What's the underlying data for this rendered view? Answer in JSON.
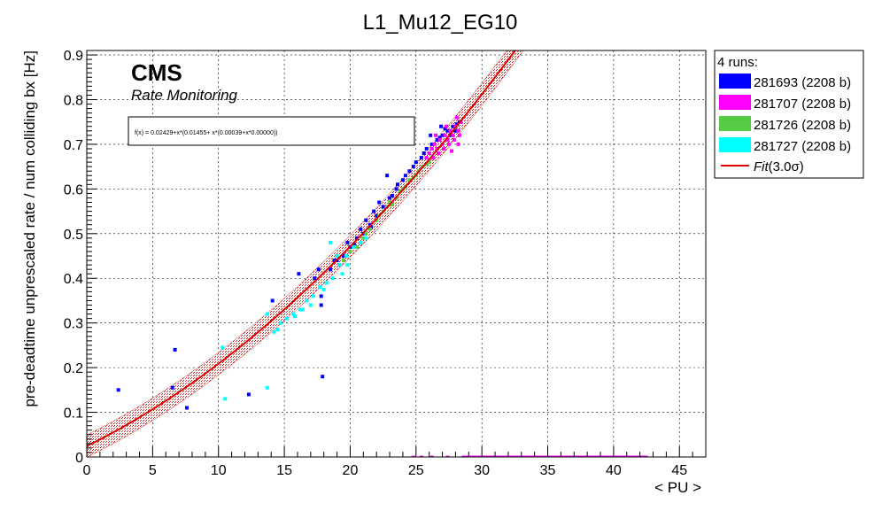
{
  "chart_data": {
    "type": "scatter",
    "title": "L1_Mu12_EG10",
    "xlabel": "< PU >",
    "ylabel": "pre-deadtime unprescaled rate / num colliding bx [Hz]",
    "xlim": [
      0,
      47
    ],
    "ylim": [
      0,
      0.91
    ],
    "x_ticks": [
      0,
      5,
      10,
      15,
      20,
      25,
      30,
      35,
      40,
      45
    ],
    "y_ticks": [
      0,
      0.1,
      0.2,
      0.3,
      0.4,
      0.5,
      0.6,
      0.7,
      0.8,
      0.9
    ],
    "x_tick_labels": [
      "0",
      "5",
      "10",
      "15",
      "20",
      "25",
      "30",
      "35",
      "40",
      "45"
    ],
    "y_tick_labels": [
      "0",
      "0.1",
      "0.2",
      "0.3",
      "0.4",
      "0.5",
      "0.6",
      "0.7",
      "0.8",
      "0.9"
    ],
    "grid": true,
    "cms_label": "CMS",
    "cms_sublabel": "Rate Monitoring",
    "fit_formula": "f(x) = 0.02429+x*(0.01455+ x*(0.00039+x*0.00000))",
    "fit": {
      "name": "Fit(3.0σ)",
      "name_prefix": "Fit",
      "name_suffix": "(3.0σ)",
      "color": "#dd0000",
      "band_color": "#cc2222",
      "coefficients": [
        0.02429,
        0.01455,
        0.00039,
        0.0
      ],
      "sigma_band": 0.025
    },
    "legend": {
      "title": "4 runs:",
      "position": "top-right outside"
    },
    "series": [
      {
        "name": "281693 (2208 b)",
        "color": "#0000ff",
        "points": [
          [
            2.4,
            0.15
          ],
          [
            6.5,
            0.155
          ],
          [
            6.7,
            0.24
          ],
          [
            7.6,
            0.11
          ],
          [
            12.3,
            0.14
          ],
          [
            14.1,
            0.35
          ],
          [
            16.1,
            0.41
          ],
          [
            17.3,
            0.4
          ],
          [
            17.8,
            0.36
          ],
          [
            17.8,
            0.34
          ],
          [
            17.9,
            0.18
          ],
          [
            18.5,
            0.42
          ],
          [
            19.0,
            0.44
          ],
          [
            19.5,
            0.45
          ],
          [
            20.0,
            0.47
          ],
          [
            20.5,
            0.49
          ],
          [
            21.0,
            0.5
          ],
          [
            21.5,
            0.52
          ],
          [
            22.0,
            0.54
          ],
          [
            22.5,
            0.56
          ],
          [
            23.0,
            0.58
          ],
          [
            23.5,
            0.6
          ],
          [
            24.0,
            0.62
          ],
          [
            24.5,
            0.64
          ],
          [
            25.0,
            0.66
          ],
          [
            25.4,
            0.67
          ],
          [
            25.8,
            0.69
          ],
          [
            26.2,
            0.7
          ],
          [
            26.6,
            0.71
          ],
          [
            27.0,
            0.72
          ],
          [
            27.4,
            0.73
          ],
          [
            27.8,
            0.74
          ],
          [
            28.1,
            0.745
          ],
          [
            28.3,
            0.75
          ],
          [
            22.8,
            0.63
          ],
          [
            23.6,
            0.61
          ],
          [
            24.8,
            0.65
          ],
          [
            26.1,
            0.72
          ],
          [
            26.9,
            0.74
          ],
          [
            27.6,
            0.72
          ],
          [
            28.0,
            0.73
          ],
          [
            21.8,
            0.55
          ],
          [
            20.8,
            0.51
          ],
          [
            19.8,
            0.48
          ],
          [
            18.8,
            0.44
          ],
          [
            17.6,
            0.42
          ],
          [
            19.2,
            0.43
          ],
          [
            21.2,
            0.53
          ],
          [
            22.2,
            0.57
          ],
          [
            24.2,
            0.63
          ],
          [
            25.6,
            0.68
          ],
          [
            20.3,
            0.475
          ],
          [
            21.6,
            0.515
          ],
          [
            23.2,
            0.585
          ],
          [
            26.8,
            0.715
          ],
          [
            27.2,
            0.735
          ]
        ]
      },
      {
        "name": "281707 (2208 b)",
        "color": "#ff00ff",
        "points": [
          [
            26.0,
            0.68
          ],
          [
            26.2,
            0.69
          ],
          [
            26.4,
            0.7
          ],
          [
            26.6,
            0.69
          ],
          [
            26.8,
            0.71
          ],
          [
            27.0,
            0.7
          ],
          [
            27.2,
            0.72
          ],
          [
            27.4,
            0.71
          ],
          [
            27.6,
            0.73
          ],
          [
            27.8,
            0.72
          ],
          [
            28.0,
            0.74
          ],
          [
            28.2,
            0.73
          ],
          [
            28.4,
            0.75
          ],
          [
            26.3,
            0.67
          ],
          [
            26.7,
            0.68
          ],
          [
            27.1,
            0.69
          ],
          [
            27.5,
            0.7
          ],
          [
            27.9,
            0.71
          ],
          [
            28.3,
            0.72
          ],
          [
            26.5,
            0.72
          ],
          [
            27.3,
            0.74
          ],
          [
            28.1,
            0.76
          ],
          [
            25.8,
            0.67
          ],
          [
            27.7,
            0.685
          ],
          [
            28.2,
            0.7
          ],
          [
            24.8,
            0.0
          ],
          [
            25.4,
            0.0
          ],
          [
            26.2,
            0.0
          ],
          [
            27.4,
            0.0
          ],
          [
            28.6,
            0.0
          ]
        ],
        "zero_segment": [
          28.6,
          42.6
        ]
      },
      {
        "name": "281726 (2208 b)",
        "color": "#55cc44",
        "points": [
          [
            19.5,
            0.44
          ],
          [
            20.0,
            0.46
          ],
          [
            20.5,
            0.47
          ],
          [
            21.0,
            0.49
          ],
          [
            21.5,
            0.51
          ],
          [
            22.0,
            0.53
          ],
          [
            22.5,
            0.55
          ],
          [
            23.0,
            0.57
          ],
          [
            23.5,
            0.58
          ],
          [
            24.0,
            0.6
          ],
          [
            24.5,
            0.62
          ],
          [
            25.0,
            0.63
          ],
          [
            25.5,
            0.65
          ],
          [
            26.0,
            0.66
          ],
          [
            21.2,
            0.5
          ],
          [
            22.2,
            0.54
          ],
          [
            23.2,
            0.565
          ],
          [
            24.2,
            0.605
          ],
          [
            25.2,
            0.64
          ],
          [
            25.8,
            0.655
          ],
          [
            20.8,
            0.48
          ],
          [
            22.8,
            0.56
          ],
          [
            24.8,
            0.625
          ],
          [
            23.8,
            0.595
          ]
        ]
      },
      {
        "name": "281727 (2208 b)",
        "color": "#00ffff",
        "points": [
          [
            10.3,
            0.245
          ],
          [
            10.5,
            0.13
          ],
          [
            13.7,
            0.155
          ],
          [
            13.7,
            0.32
          ],
          [
            14.2,
            0.28
          ],
          [
            14.7,
            0.3
          ],
          [
            15.2,
            0.31
          ],
          [
            15.7,
            0.32
          ],
          [
            16.2,
            0.33
          ],
          [
            16.7,
            0.35
          ],
          [
            17.2,
            0.36
          ],
          [
            17.7,
            0.38
          ],
          [
            18.2,
            0.39
          ],
          [
            18.7,
            0.4
          ],
          [
            19.2,
            0.43
          ],
          [
            19.7,
            0.45
          ],
          [
            20.3,
            0.47
          ],
          [
            20.8,
            0.48
          ],
          [
            21.2,
            0.49
          ],
          [
            18.5,
            0.48
          ],
          [
            19.0,
            0.45
          ],
          [
            19.8,
            0.43
          ],
          [
            17.0,
            0.34
          ],
          [
            15.8,
            0.315
          ],
          [
            14.5,
            0.285
          ],
          [
            18.0,
            0.375
          ],
          [
            19.4,
            0.41
          ],
          [
            16.4,
            0.33
          ]
        ]
      }
    ]
  }
}
